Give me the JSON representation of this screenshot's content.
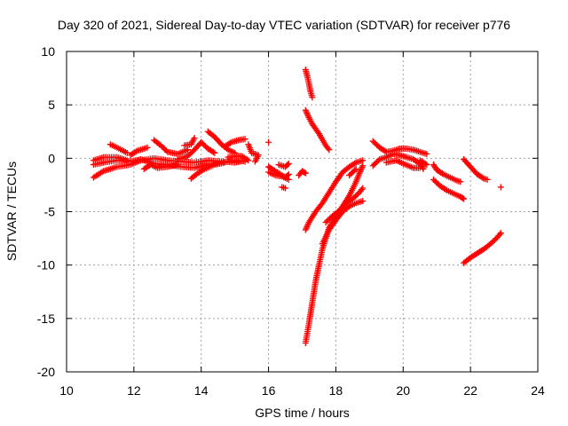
{
  "chart_data": {
    "type": "scatter",
    "title": "Day 320 of 2021, Sidereal Day-to-day VTEC variation (SDTVAR) for receiver p776",
    "xlabel": "GPS time / hours",
    "ylabel": "SDTVAR / TECUs",
    "xlim": [
      10,
      24
    ],
    "ylim": [
      -20,
      10
    ],
    "xticks": [
      10,
      12,
      14,
      16,
      18,
      20,
      22,
      24
    ],
    "yticks": [
      -20,
      -15,
      -10,
      -5,
      0,
      5,
      10
    ],
    "grid": true,
    "marker": "plus",
    "color": "#ff0000",
    "segments": [
      [
        [
          10.8,
          -1.8
        ],
        [
          11.1,
          -1.2
        ],
        [
          11.5,
          -0.8
        ],
        [
          11.9,
          -0.6
        ],
        [
          12.2,
          -0.2
        ],
        [
          12.6,
          0.0
        ],
        [
          13.0,
          -0.2
        ],
        [
          13.4,
          -0.3
        ],
        [
          13.8,
          -0.4
        ],
        [
          14.2,
          -0.2
        ],
        [
          14.6,
          -0.3
        ],
        [
          15.0,
          -0.4
        ],
        [
          15.3,
          -0.2
        ]
      ],
      [
        [
          10.8,
          -0.6
        ],
        [
          11.1,
          -0.4
        ],
        [
          11.5,
          -0.2
        ],
        [
          11.9,
          -0.3
        ],
        [
          12.2,
          -0.1
        ],
        [
          12.6,
          -0.5
        ],
        [
          13.0,
          -0.6
        ],
        [
          13.4,
          -0.8
        ],
        [
          13.8,
          -0.9
        ],
        [
          14.2,
          -0.6
        ],
        [
          14.6,
          -0.4
        ],
        [
          15.0,
          -0.2
        ],
        [
          15.3,
          -0.3
        ]
      ],
      [
        [
          10.8,
          -0.2
        ],
        [
          11.1,
          0.1
        ],
        [
          11.5,
          0.1
        ],
        [
          11.8,
          -0.2
        ]
      ],
      [
        [
          11.3,
          1.3
        ],
        [
          11.5,
          1.0
        ],
        [
          11.8,
          0.5
        ]
      ],
      [
        [
          11.9,
          0.3
        ],
        [
          12.1,
          0.7
        ],
        [
          12.4,
          1.0
        ]
      ],
      [
        [
          12.6,
          1.7
        ],
        [
          12.8,
          1.2
        ],
        [
          13.0,
          0.6
        ],
        [
          13.3,
          0.4
        ],
        [
          13.6,
          0.8
        ]
      ],
      [
        [
          12.3,
          -1.0
        ],
        [
          12.5,
          -0.6
        ],
        [
          12.7,
          -0.9
        ],
        [
          13.0,
          -0.8
        ],
        [
          13.3,
          -0.6
        ]
      ],
      [
        [
          13.3,
          -0.1
        ],
        [
          13.6,
          0.2
        ],
        [
          13.8,
          0.8
        ],
        [
          14.0,
          1.5
        ],
        [
          14.2,
          0.9
        ],
        [
          14.4,
          0.5
        ]
      ],
      [
        [
          13.7,
          -1.9
        ],
        [
          13.9,
          -1.4
        ],
        [
          14.1,
          -1.0
        ],
        [
          14.4,
          -0.6
        ],
        [
          14.7,
          -0.4
        ]
      ],
      [
        [
          13.5,
          1.2
        ],
        [
          13.7,
          1.3
        ],
        [
          13.8,
          1.9
        ]
      ],
      [
        [
          14.2,
          2.5
        ],
        [
          14.4,
          2.0
        ],
        [
          14.6,
          1.3
        ],
        [
          14.8,
          0.8
        ],
        [
          15.0,
          0.5
        ]
      ],
      [
        [
          14.7,
          1.1
        ],
        [
          14.9,
          1.5
        ],
        [
          15.1,
          1.7
        ],
        [
          15.3,
          1.8
        ]
      ],
      [
        [
          14.8,
          0.1
        ],
        [
          15.0,
          0.2
        ],
        [
          15.2,
          0.2
        ],
        [
          15.4,
          -0.2
        ]
      ],
      [
        [
          15.4,
          1.3
        ],
        [
          15.5,
          0.5
        ],
        [
          15.7,
          0.3
        ],
        [
          15.6,
          -0.3
        ]
      ],
      [
        [
          16.0,
          1.5
        ]
      ],
      [
        [
          16.0,
          -0.8
        ],
        [
          16.1,
          -1.0
        ],
        [
          16.3,
          -1.4
        ],
        [
          16.5,
          -1.8
        ],
        [
          16.6,
          -1.5
        ]
      ],
      [
        [
          16.0,
          -1.3
        ],
        [
          16.2,
          -1.6
        ],
        [
          16.4,
          -1.7
        ],
        [
          16.6,
          -2.0
        ]
      ],
      [
        [
          16.4,
          -2.7
        ],
        [
          16.5,
          -2.8
        ]
      ],
      [
        [
          16.3,
          -0.6
        ],
        [
          16.5,
          -0.8
        ],
        [
          16.6,
          -0.5
        ]
      ],
      [
        [
          16.9,
          -1.6
        ],
        [
          17.0,
          -1.2
        ],
        [
          17.1,
          -1.4
        ]
      ],
      [
        [
          17.1,
          8.3
        ],
        [
          17.15,
          7.7
        ],
        [
          17.2,
          7.0
        ],
        [
          17.25,
          6.2
        ],
        [
          17.3,
          5.7
        ]
      ],
      [
        [
          17.1,
          4.5
        ],
        [
          17.2,
          3.8
        ],
        [
          17.3,
          3.2
        ],
        [
          17.5,
          2.3
        ],
        [
          17.7,
          1.2
        ],
        [
          17.8,
          0.8
        ]
      ],
      [
        [
          17.1,
          -17.3
        ],
        [
          17.2,
          -15.5
        ],
        [
          17.3,
          -13.5
        ],
        [
          17.4,
          -11.5
        ],
        [
          17.5,
          -10.0
        ],
        [
          17.6,
          -8.5
        ],
        [
          17.7,
          -7.5
        ],
        [
          17.8,
          -6.5
        ],
        [
          17.9,
          -6.0
        ],
        [
          18.0,
          -5.5
        ],
        [
          18.2,
          -4.5
        ],
        [
          18.4,
          -3.5
        ],
        [
          18.6,
          -2.2
        ],
        [
          18.7,
          -1.4
        ],
        [
          18.8,
          -0.7
        ]
      ],
      [
        [
          17.1,
          -6.7
        ],
        [
          17.2,
          -6.0
        ],
        [
          17.4,
          -5.0
        ],
        [
          17.6,
          -4.2
        ],
        [
          17.8,
          -3.2
        ],
        [
          18.0,
          -2.2
        ],
        [
          18.2,
          -1.3
        ],
        [
          18.4,
          -0.8
        ],
        [
          18.6,
          -0.4
        ],
        [
          18.8,
          -0.2
        ]
      ],
      [
        [
          17.6,
          -8.0
        ],
        [
          17.8,
          -6.7
        ],
        [
          18.0,
          -5.8
        ],
        [
          18.2,
          -5.0
        ],
        [
          18.4,
          -4.5
        ],
        [
          18.6,
          -4.2
        ],
        [
          18.8,
          -4.0
        ]
      ],
      [
        [
          17.7,
          -6.0
        ],
        [
          17.9,
          -5.4
        ],
        [
          18.1,
          -4.9
        ],
        [
          18.3,
          -4.2
        ],
        [
          18.5,
          -3.8
        ],
        [
          18.7,
          -3.2
        ],
        [
          18.8,
          -2.8
        ]
      ],
      [
        [
          18.4,
          -1.6
        ],
        [
          18.6,
          -1.0
        ]
      ],
      [
        [
          19.1,
          1.6
        ],
        [
          19.3,
          1.0
        ],
        [
          19.5,
          0.6
        ],
        [
          19.7,
          0.7
        ],
        [
          19.9,
          0.9
        ],
        [
          20.1,
          0.9
        ],
        [
          20.3,
          0.8
        ],
        [
          20.5,
          0.6
        ],
        [
          20.7,
          0.4
        ]
      ],
      [
        [
          19.1,
          -0.7
        ],
        [
          19.3,
          -0.1
        ],
        [
          19.5,
          0.1
        ],
        [
          19.7,
          0.4
        ],
        [
          19.9,
          0.3
        ],
        [
          20.1,
          0.1
        ],
        [
          20.3,
          -0.1
        ],
        [
          20.5,
          -0.5
        ],
        [
          20.6,
          -1.0
        ]
      ],
      [
        [
          19.5,
          -0.4
        ],
        [
          19.8,
          -0.2
        ],
        [
          20.0,
          -0.5
        ],
        [
          20.3,
          -0.9
        ],
        [
          20.5,
          -0.9
        ]
      ],
      [
        [
          20.5,
          -0.2
        ],
        [
          20.7,
          -0.6
        ]
      ],
      [
        [
          20.9,
          -0.6
        ],
        [
          21.0,
          -1.1
        ],
        [
          21.2,
          -1.5
        ],
        [
          21.4,
          -1.8
        ],
        [
          21.6,
          -2.1
        ],
        [
          21.7,
          -2.2
        ]
      ],
      [
        [
          20.9,
          -2.0
        ],
        [
          21.1,
          -2.6
        ],
        [
          21.3,
          -3.0
        ],
        [
          21.5,
          -3.3
        ],
        [
          21.7,
          -3.6
        ],
        [
          21.8,
          -3.8
        ]
      ],
      [
        [
          21.8,
          -0.1
        ],
        [
          22.0,
          -0.8
        ],
        [
          22.2,
          -1.5
        ],
        [
          22.4,
          -1.9
        ],
        [
          22.5,
          -2.0
        ]
      ],
      [
        [
          22.9,
          -2.7
        ]
      ],
      [
        [
          21.8,
          -9.8
        ],
        [
          22.0,
          -9.3
        ],
        [
          22.2,
          -8.9
        ],
        [
          22.4,
          -8.5
        ],
        [
          22.6,
          -8.0
        ],
        [
          22.8,
          -7.4
        ],
        [
          22.9,
          -7.0
        ]
      ]
    ]
  }
}
